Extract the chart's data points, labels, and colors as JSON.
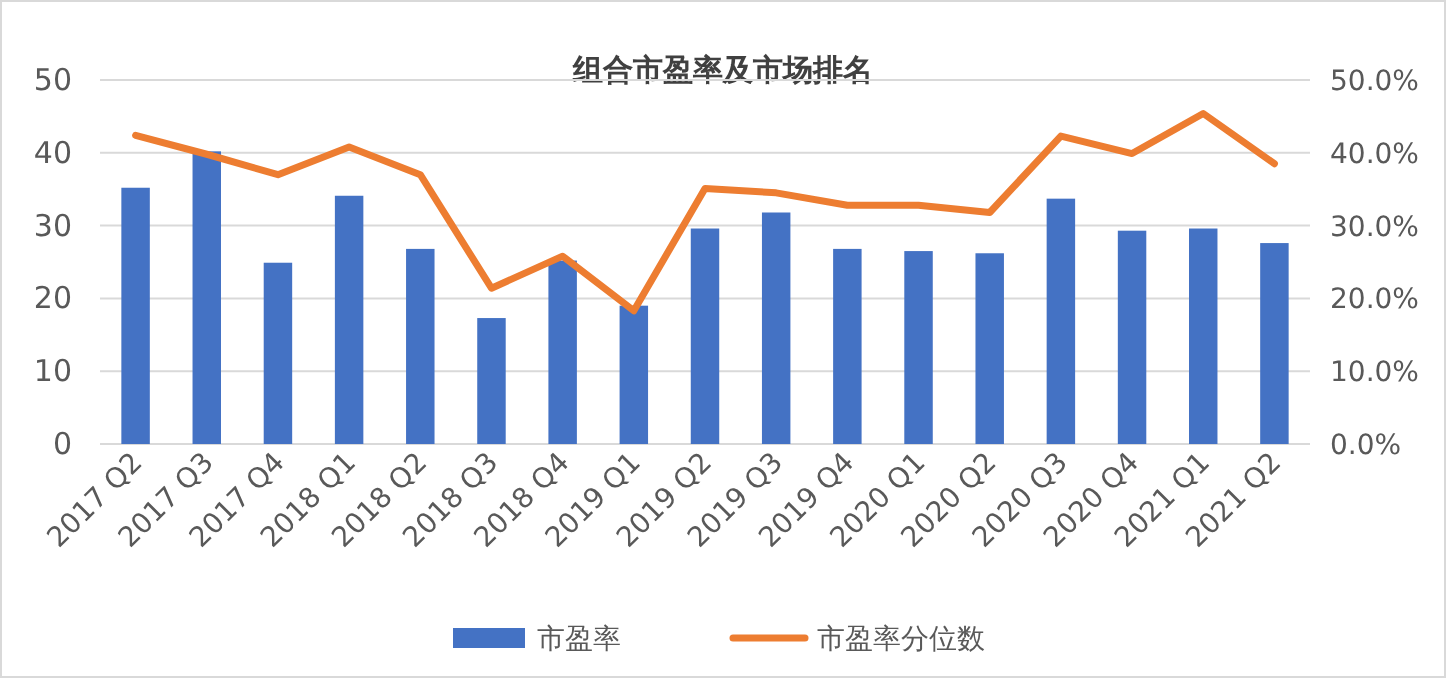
{
  "chart_data": {
    "type": "bar",
    "title": "组合市盈率及市场排名",
    "categories": [
      "2017 Q2",
      "2017 Q3",
      "2017 Q4",
      "2018 Q1",
      "2018 Q2",
      "2018 Q3",
      "2018 Q4",
      "2019 Q1",
      "2019 Q2",
      "2019 Q3",
      "2019 Q4",
      "2020 Q1",
      "2020 Q2",
      "2020 Q3",
      "2020 Q4",
      "2021 Q1",
      "2021 Q2"
    ],
    "series": [
      {
        "name": "市盈率",
        "color": "#4472c4",
        "values": [
          35.2,
          40.2,
          24.9,
          34.1,
          26.8,
          17.3,
          25.2,
          19,
          29.6,
          31.8,
          26.8,
          26.5,
          26.2,
          33.7,
          29.3,
          29.6,
          27.6
        ]
      },
      {
        "name": "市盈率分位数",
        "type": "line",
        "axis": "y2",
        "color": "#ed7d31",
        "values": [
          0.424,
          0.398,
          0.37,
          0.408,
          0.37,
          0.214,
          0.258,
          0.183,
          0.351,
          0.345,
          0.328,
          0.328,
          0.318,
          0.423,
          0.399,
          0.454,
          0.385
        ]
      }
    ],
    "ylim": [
      0,
      50
    ],
    "yticks": [
      0,
      10,
      20,
      30,
      40,
      50
    ],
    "y2lim": [
      0,
      0.5
    ],
    "y2ticks": [
      {
        "value": 0,
        "label": "0.0%"
      },
      {
        "value": 0.1,
        "label": "10.0%"
      },
      {
        "value": 0.2,
        "label": "20.0%"
      },
      {
        "value": 0.3,
        "label": "30.0%"
      },
      {
        "value": 0.4,
        "label": "40.0%"
      },
      {
        "value": 0.5,
        "label": "50.0%"
      }
    ],
    "grid": "y",
    "legend": "bottom",
    "marker": "none",
    "line_style": "solid"
  }
}
